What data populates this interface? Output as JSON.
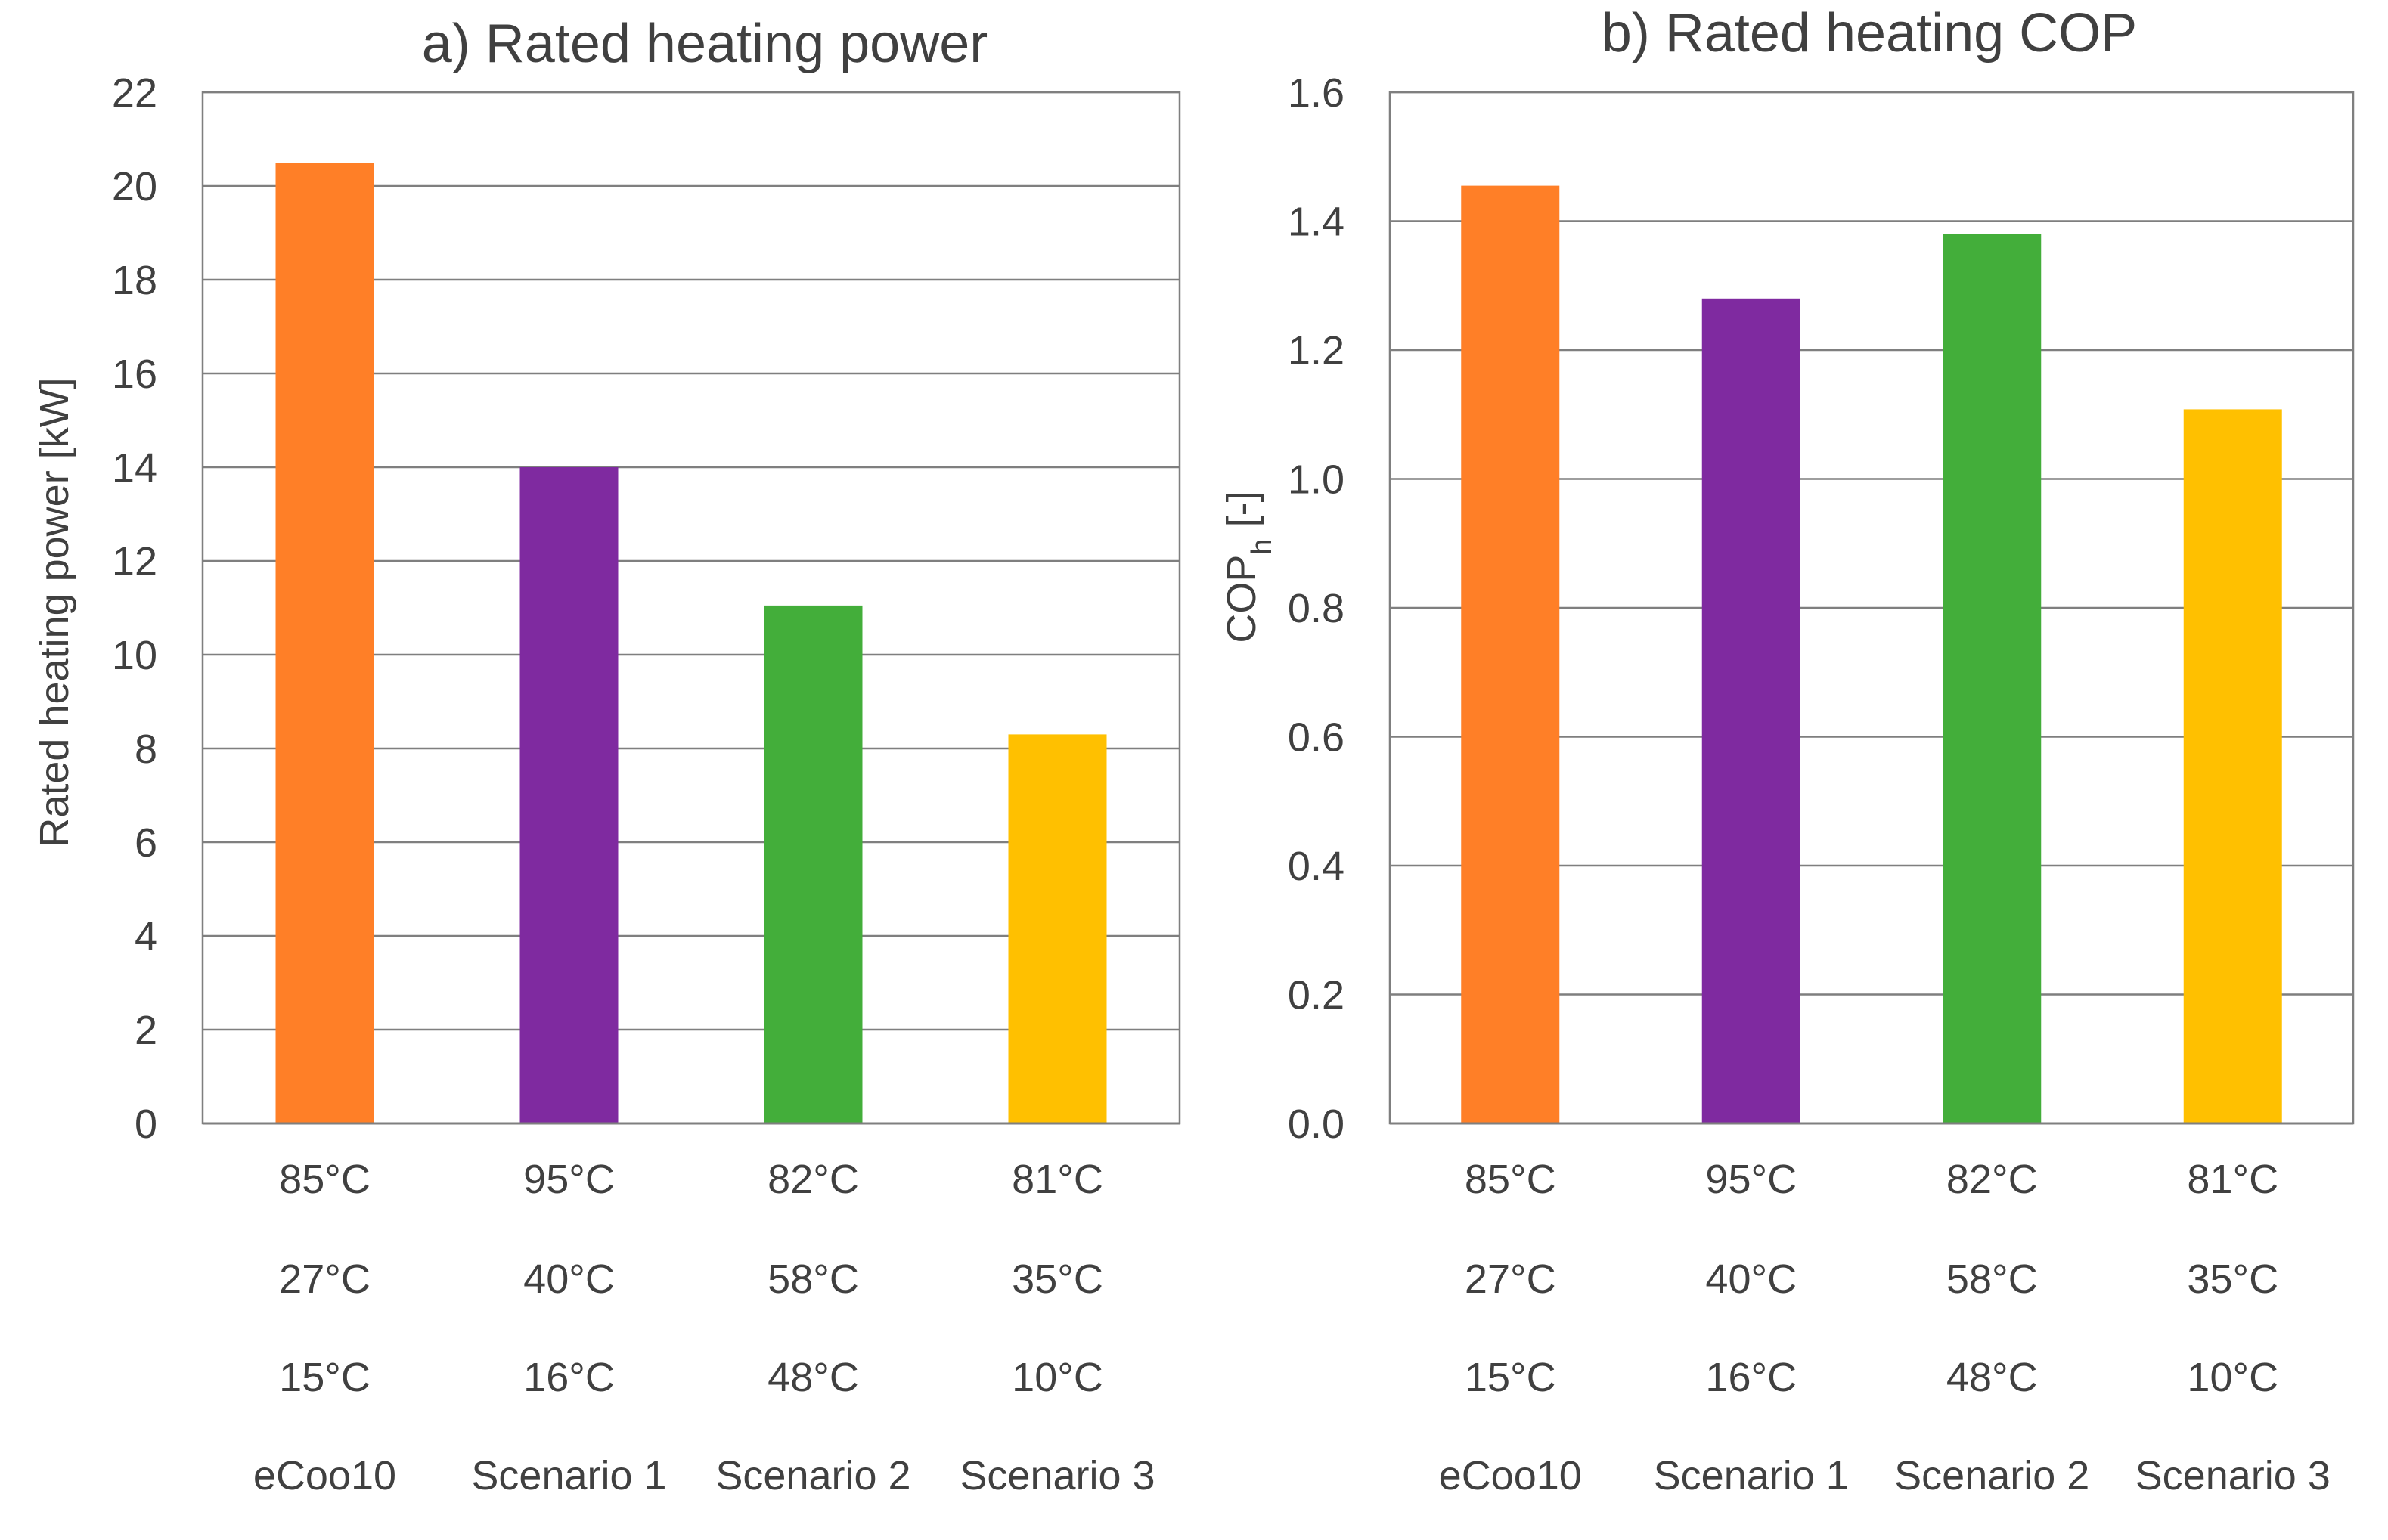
{
  "chart_data": [
    {
      "type": "bar",
      "title": "a) Rated heating power",
      "ylabel": "Rated heating power [kW]",
      "xlabel": "",
      "ylim": [
        0,
        22
      ],
      "yticks": [
        "0",
        "2",
        "4",
        "6",
        "8",
        "10",
        "12",
        "14",
        "16",
        "18",
        "20",
        "22"
      ],
      "grid": true,
      "legend": "none",
      "categories": [
        [
          "85°C",
          "27°C",
          "15°C",
          "eCoo10"
        ],
        [
          "95°C",
          "40°C",
          "16°C",
          "Scenario 1"
        ],
        [
          "82°C",
          "58°C",
          "48°C",
          "Scenario 2"
        ],
        [
          "81°C",
          "35°C",
          "10°C",
          "Scenario 3"
        ]
      ],
      "values": [
        20.5,
        14.0,
        11.05,
        8.3
      ],
      "colors": [
        "#FF7F27",
        "#7F2AA0",
        "#43AE3A",
        "#FFC000"
      ]
    },
    {
      "type": "bar",
      "title": "b) Rated heating COP",
      "ylabel": "COP",
      "ylabel_sub": "h",
      "ylabel_suffix": " [-]",
      "xlabel": "",
      "ylim": [
        0,
        1.6
      ],
      "yticks": [
        "0.0",
        "0.2",
        "0.4",
        "0.6",
        "0.8",
        "1.0",
        "1.2",
        "1.4",
        "1.6"
      ],
      "grid": true,
      "legend": "none",
      "categories": [
        [
          "85°C",
          "27°C",
          "15°C",
          "eCoo10"
        ],
        [
          "95°C",
          "40°C",
          "16°C",
          "Scenario 1"
        ],
        [
          "82°C",
          "58°C",
          "48°C",
          "Scenario 2"
        ],
        [
          "81°C",
          "35°C",
          "10°C",
          "Scenario 3"
        ]
      ],
      "values": [
        1.455,
        1.28,
        1.38,
        1.108
      ],
      "colors": [
        "#FF7F27",
        "#7F2AA0",
        "#43AE3A",
        "#FFC000"
      ]
    }
  ]
}
